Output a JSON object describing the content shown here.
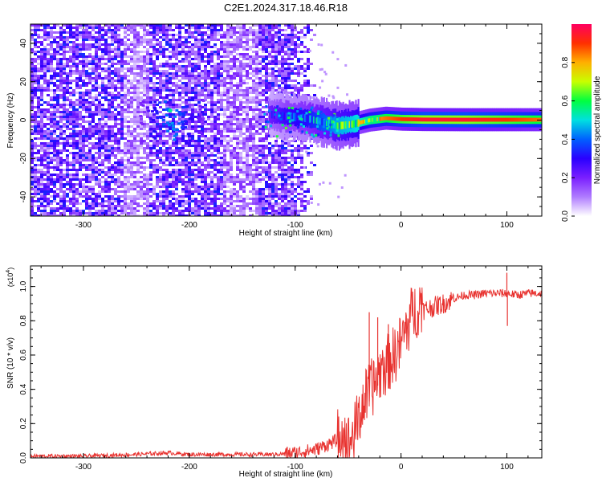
{
  "figure": {
    "title": "C2E1.2024.317.18.46.R18"
  },
  "chart_data": [
    {
      "type": "heatmap",
      "xlabel": "Height of straight line (km)",
      "ylabel": "Frequency (Hz)",
      "xlim": [
        -350,
        133
      ],
      "ylim": [
        -50,
        50
      ],
      "xticks": [
        -300,
        -200,
        -100,
        0,
        100
      ],
      "yticks": [
        -40,
        -20,
        0,
        20,
        40
      ],
      "grid": false,
      "colorbar": {
        "label": "Normalized spectral amplitude",
        "range": [
          0,
          1
        ],
        "ticks": [
          0.0,
          0.2,
          0.4,
          0.6,
          0.8
        ],
        "colormap": [
          "#ffffff",
          "#b07cff",
          "#7a1fff",
          "#2a00ff",
          "#0060ff",
          "#00e0e0",
          "#00ff40",
          "#c8ff00",
          "#ffb000",
          "#ff3000",
          "#ff0060"
        ]
      },
      "noise_region_x": [
        -350,
        -105
      ],
      "noise_level": [
        0.1,
        0.35
      ],
      "signal_track": [
        {
          "x": -125,
          "y": 3,
          "v": 0.3
        },
        {
          "x": -110,
          "y": 2,
          "v": 0.4
        },
        {
          "x": -90,
          "y": 1,
          "v": 0.45
        },
        {
          "x": -75,
          "y": -1,
          "v": 0.55
        },
        {
          "x": -60,
          "y": -3,
          "v": 0.65
        },
        {
          "x": -45,
          "y": -2,
          "v": 0.7
        },
        {
          "x": -30,
          "y": 0,
          "v": 0.8
        },
        {
          "x": -15,
          "y": 1,
          "v": 0.85
        },
        {
          "x": 0,
          "y": 0.5,
          "v": 0.9
        },
        {
          "x": 20,
          "y": 0.3,
          "v": 0.95
        },
        {
          "x": 60,
          "y": 0.2,
          "v": 0.95
        },
        {
          "x": 100,
          "y": 0.2,
          "v": 0.9
        },
        {
          "x": 133,
          "y": 0.2,
          "v": 0.85
        }
      ],
      "cluster": {
        "x": -218,
        "y": 5,
        "v": 0.45
      }
    },
    {
      "type": "line",
      "xlabel": "Height of straight line (km)",
      "ylabel": "SNR (10 * v/v)",
      "yscale_label_base": "(x10",
      "yscale_label_exp": "4",
      "yscale_label_close": ")",
      "xlim": [
        -350,
        133
      ],
      "ylim": [
        0,
        1.12
      ],
      "xticks": [
        -300,
        -200,
        -100,
        0,
        100
      ],
      "yticks": [
        0.0,
        0.2,
        0.4,
        0.6,
        0.8,
        1.0
      ],
      "grid": false,
      "series": [
        {
          "color": "#e8322f",
          "x": [
            -350,
            -300,
            -250,
            -220,
            -200,
            -150,
            -120,
            -100,
            -80,
            -65,
            -55,
            -50,
            -45,
            -40,
            -35,
            -30,
            -25,
            -20,
            -15,
            -10,
            -5,
            0,
            5,
            10,
            15,
            20,
            30,
            40,
            50,
            60,
            70,
            80,
            90,
            100,
            110,
            120,
            133
          ],
          "y": [
            0.01,
            0.01,
            0.02,
            0.03,
            0.02,
            0.02,
            0.02,
            0.03,
            0.05,
            0.09,
            0.12,
            0.03,
            0.08,
            0.18,
            0.28,
            0.33,
            0.38,
            0.45,
            0.48,
            0.52,
            0.56,
            0.62,
            0.7,
            0.78,
            0.82,
            0.86,
            0.88,
            0.9,
            0.93,
            0.95,
            0.95,
            0.96,
            0.96,
            0.96,
            0.95,
            0.96,
            0.96
          ],
          "spikes": [
            {
              "x": -30,
              "y": 0.85
            },
            {
              "x": -22,
              "y": 0.82
            },
            {
              "x": -12,
              "y": 0.78
            },
            {
              "x": 100,
              "y": 1.08
            },
            {
              "x": 100.5,
              "y": 0.77
            }
          ]
        }
      ]
    }
  ]
}
